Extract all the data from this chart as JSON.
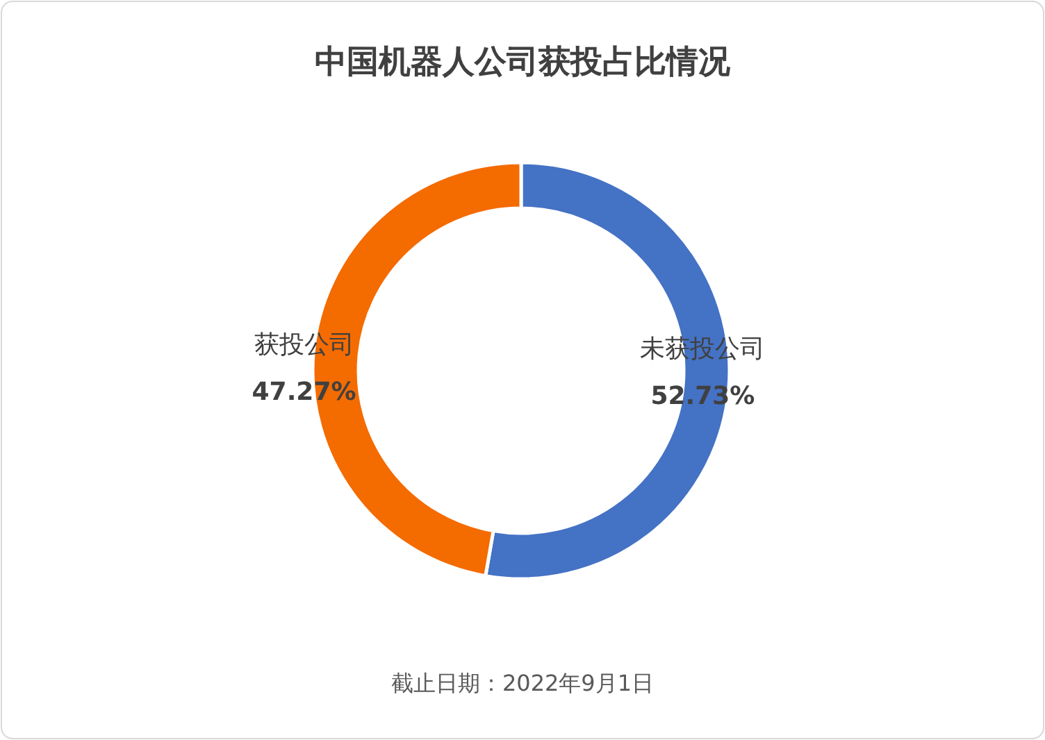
{
  "chart_data": {
    "type": "donut",
    "title": "中国机器人公司获投占比情况",
    "categories": [
      "未获投公司",
      "获投公司"
    ],
    "values": [
      52.73,
      47.27
    ],
    "colors": [
      "#4472c4",
      "#f46b00"
    ],
    "value_labels": [
      "52.73%",
      "47.27%"
    ],
    "annotations": [
      "截止日期：2022年9月1日"
    ]
  }
}
